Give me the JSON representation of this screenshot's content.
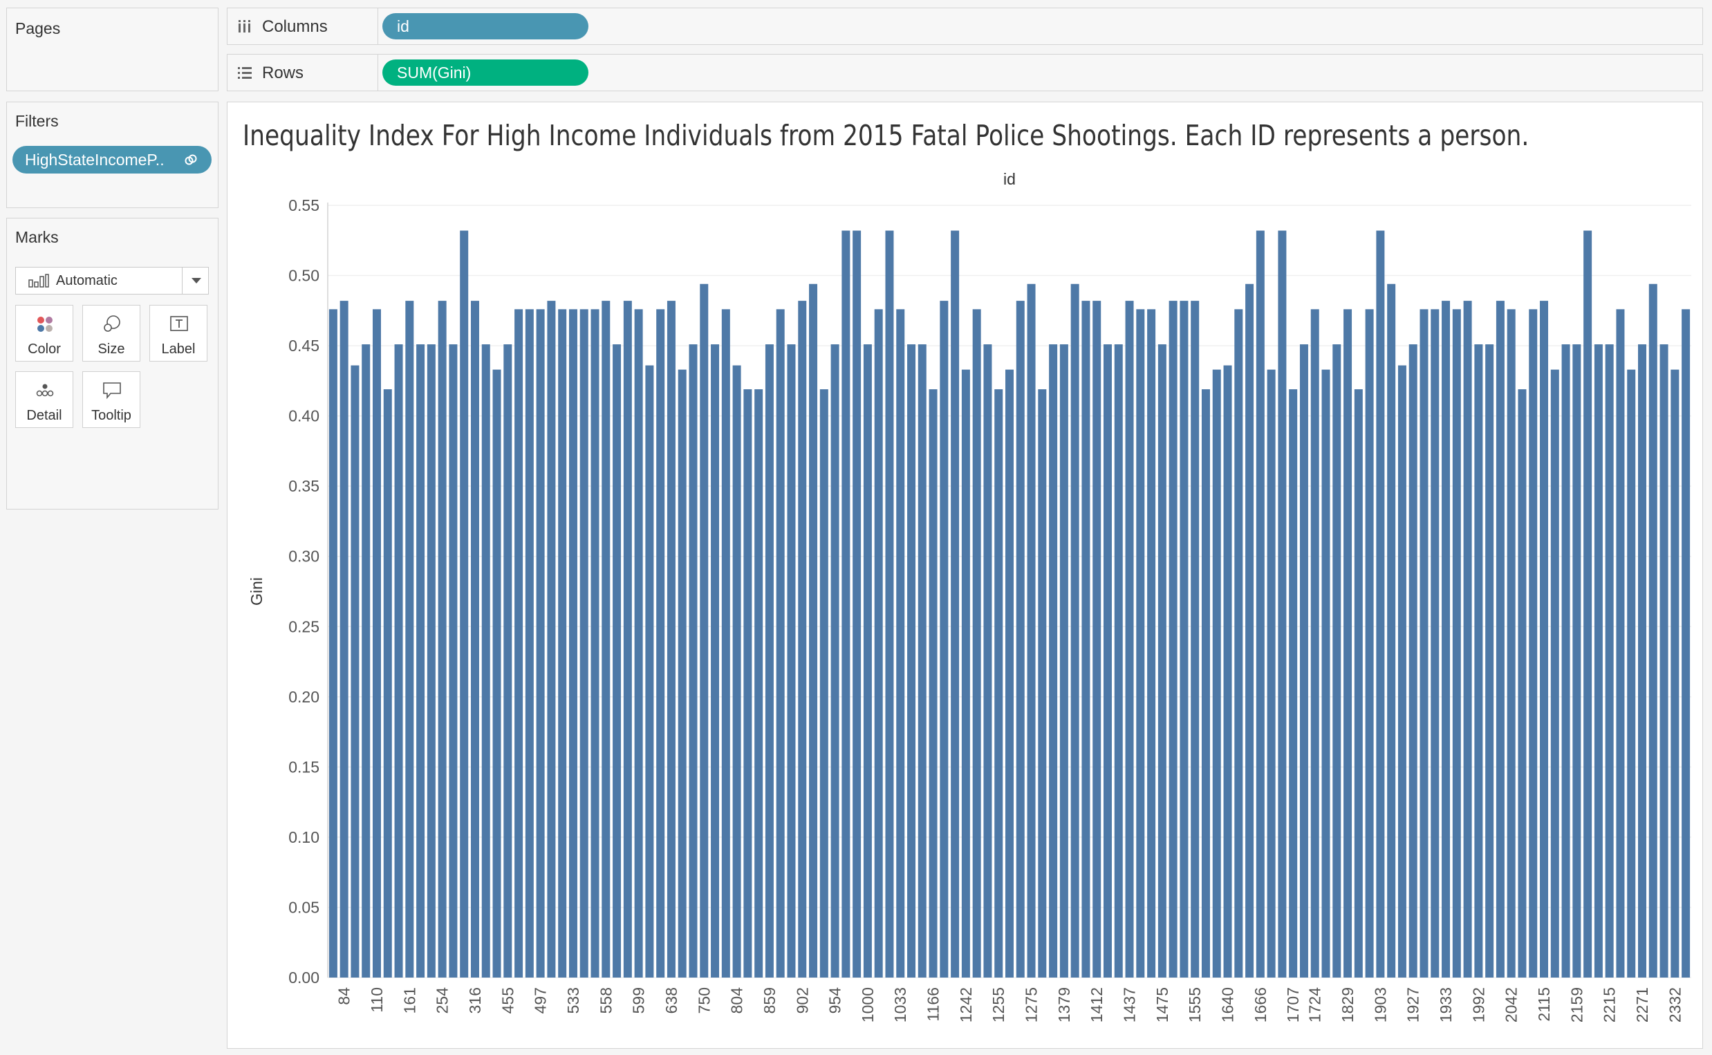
{
  "pages": {
    "title": "Pages"
  },
  "filters": {
    "title": "Filters",
    "pill_label": "HighStateIncomeP..",
    "pill_icon": "link-icon"
  },
  "marks": {
    "title": "Marks",
    "mark_type": "Automatic",
    "buttons": {
      "color": "Color",
      "size": "Size",
      "label": "Label",
      "detail": "Detail",
      "tooltip": "Tooltip"
    }
  },
  "shelves": {
    "columns": {
      "label": "Columns",
      "pill": "id",
      "icon": "columns-icon"
    },
    "rows": {
      "label": "Rows",
      "pill": "SUM(Gini)",
      "icon": "rows-icon"
    }
  },
  "colors": {
    "bar": "#4e79a7",
    "dimension_pill": "#4996b2",
    "measure_pill": "#00b180"
  },
  "chart_data": {
    "type": "bar",
    "title": "Inequality Index For High Income Individuals from 2015 Fatal Police Shootings. Each ID represents a person.",
    "xlabel": "id",
    "ylabel": "Gini",
    "ylim": [
      0,
      0.55
    ],
    "yticks": [
      "0.00",
      "0.05",
      "0.10",
      "0.15",
      "0.20",
      "0.25",
      "0.30",
      "0.35",
      "0.40",
      "0.45",
      "0.50",
      "0.55"
    ],
    "grid": true,
    "visible_tick_labels": [
      "84",
      "110",
      "161",
      "254",
      "316",
      "455",
      "497",
      "533",
      "558",
      "599",
      "638",
      "750",
      "804",
      "859",
      "902",
      "954",
      "1000",
      "1033",
      "1166",
      "1242",
      "1255",
      "1275",
      "1379",
      "1412",
      "1437",
      "1475",
      "1555",
      "1640",
      "1666",
      "1707",
      "1724",
      "1829",
      "1903",
      "1927",
      "1933",
      "1992",
      "2042",
      "2115",
      "2159",
      "2215",
      "2271",
      "2332"
    ],
    "series": [
      {
        "values": [
          0.476,
          0.482,
          0.436,
          0.451,
          0.476,
          0.419,
          0.451,
          0.482,
          0.451,
          0.451,
          0.482,
          0.451,
          0.532,
          0.482,
          0.451,
          0.433,
          0.451,
          0.476,
          0.476,
          0.476,
          0.482,
          0.476,
          0.476,
          0.476,
          0.476,
          0.482,
          0.451,
          0.482,
          0.476,
          0.436,
          0.476,
          0.482,
          0.433,
          0.451,
          0.494,
          0.451,
          0.476,
          0.436,
          0.419,
          0.419,
          0.451,
          0.476,
          0.451,
          0.482,
          0.494,
          0.419,
          0.451,
          0.532,
          0.532,
          0.451,
          0.476,
          0.532,
          0.476,
          0.451,
          0.451,
          0.419,
          0.482,
          0.532,
          0.433,
          0.476,
          0.451,
          0.419,
          0.433,
          0.482,
          0.494,
          0.419,
          0.451,
          0.451,
          0.494,
          0.482,
          0.482,
          0.451,
          0.451,
          0.482,
          0.476,
          0.476,
          0.451,
          0.482,
          0.482,
          0.482,
          0.419,
          0.433,
          0.436,
          0.476,
          0.494,
          0.532,
          0.433,
          0.532,
          0.419,
          0.451,
          0.476,
          0.433,
          0.451,
          0.476,
          0.419,
          0.476,
          0.532,
          0.494,
          0.436,
          0.451,
          0.476,
          0.476,
          0.482,
          0.476,
          0.482,
          0.451,
          0.451,
          0.482,
          0.476,
          0.419,
          0.476,
          0.482,
          0.433,
          0.451,
          0.451,
          0.532,
          0.451,
          0.451,
          0.476,
          0.433,
          0.451,
          0.494,
          0.451,
          0.433,
          0.476
        ]
      }
    ]
  }
}
